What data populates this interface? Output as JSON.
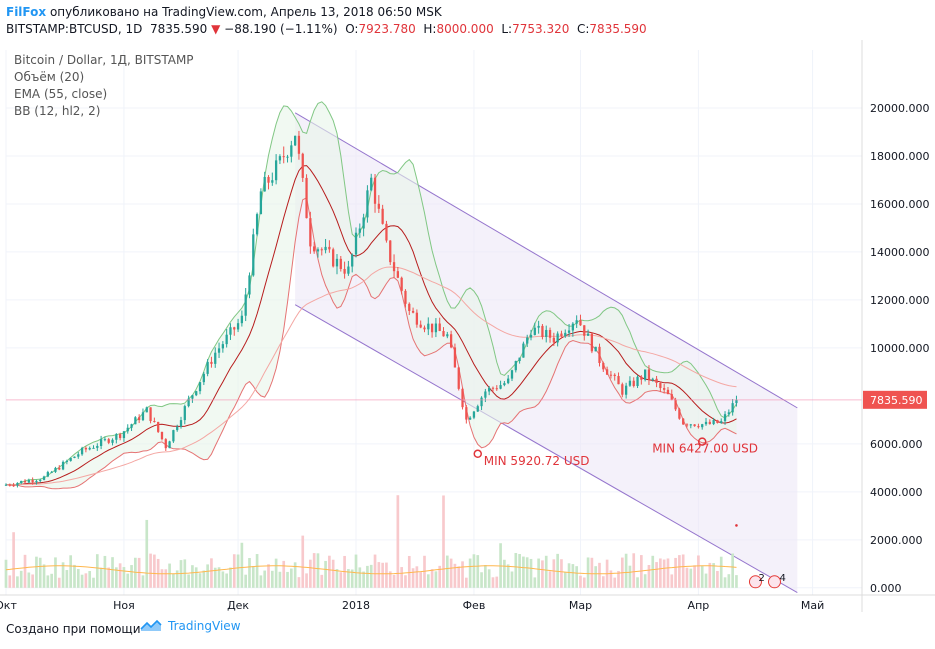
{
  "header": {
    "author": "FilFox",
    "published": "опубликовано на TradingView.com, Апрель 13, 2018 06:50 MSK",
    "symbol": "BITSTAMP:BTCUSD, 1D",
    "last": "7835.590",
    "change": "−88.190 (−1.11%)",
    "o_label": "O:",
    "o_value": "7923.780",
    "h_label": "H:",
    "h_value": "8000.000",
    "l_label": "L:",
    "l_value": "7753.320",
    "c_label": "C:",
    "c_value": "7835.590"
  },
  "legend": {
    "title": "Bitcoin / Dollar, 1Д, BITSTAMP",
    "volume": "Объём (20)",
    "ema": "EMA (55, close)",
    "bb": "BB (12, hl2, 2)"
  },
  "annotations": {
    "min1": "MIN 5920.72 USD",
    "min2": "MIN 6427.00 USD",
    "price_tag": "7835.590",
    "events": [
      "2",
      "4"
    ]
  },
  "footer": {
    "made_with": "Создано при помощи",
    "brand": "TradingView"
  },
  "colors": {
    "up": "#26a69a",
    "down": "#ef5350",
    "ema": "#f4a7a3",
    "bb_band": "#81c784",
    "bb_basis": "#e57373",
    "channel": "#9575cd",
    "channel_fill": "#ede7f6",
    "price_line": "#f48fb1",
    "volume_ma": "#ffb74d"
  },
  "chart_data": {
    "type": "candlestick",
    "y_axis_labels": [
      "20000.000",
      "18000.000",
      "16000.000",
      "14000.000",
      "12000.000",
      "10000.000",
      "6000.000",
      "4000.000",
      "2000.000",
      "0.000"
    ],
    "ylim": [
      -300,
      22000
    ],
    "x_axis_labels": [
      "Окт",
      "Ноя",
      "Дек",
      "2018",
      "Фев",
      "Мар",
      "Апр",
      "Май"
    ],
    "x_ticks_day_index": [
      0,
      31,
      61,
      92,
      123,
      151,
      182,
      212
    ],
    "close_series_key_points": [
      {
        "day": 0,
        "close": 4300
      },
      {
        "day": 10,
        "close": 4600
      },
      {
        "day": 20,
        "close": 5700
      },
      {
        "day": 30,
        "close": 6400
      },
      {
        "day": 37,
        "close": 7400
      },
      {
        "day": 42,
        "close": 5900
      },
      {
        "day": 48,
        "close": 7800
      },
      {
        "day": 55,
        "close": 9800
      },
      {
        "day": 62,
        "close": 11200
      },
      {
        "day": 67,
        "close": 16500
      },
      {
        "day": 72,
        "close": 17700
      },
      {
        "day": 76,
        "close": 19000
      },
      {
        "day": 80,
        "close": 14500
      },
      {
        "day": 85,
        "close": 13800
      },
      {
        "day": 90,
        "close": 13200
      },
      {
        "day": 96,
        "close": 17000
      },
      {
        "day": 100,
        "close": 14200
      },
      {
        "day": 106,
        "close": 11500
      },
      {
        "day": 110,
        "close": 11000
      },
      {
        "day": 116,
        "close": 10500
      },
      {
        "day": 121,
        "close": 7000
      },
      {
        "day": 126,
        "close": 8200
      },
      {
        "day": 132,
        "close": 8600
      },
      {
        "day": 138,
        "close": 10800
      },
      {
        "day": 144,
        "close": 10400
      },
      {
        "day": 150,
        "close": 11300
      },
      {
        "day": 156,
        "close": 9500
      },
      {
        "day": 162,
        "close": 8200
      },
      {
        "day": 168,
        "close": 8900
      },
      {
        "day": 174,
        "close": 8000
      },
      {
        "day": 178,
        "close": 6900
      },
      {
        "day": 184,
        "close": 6800
      },
      {
        "day": 188,
        "close": 6900
      },
      {
        "day": 192,
        "close": 7835.59
      }
    ],
    "last_close": 7835.59,
    "min_points": [
      {
        "day": 124,
        "value": 5920.72
      },
      {
        "day": 183,
        "value": 6427.0
      }
    ]
  }
}
